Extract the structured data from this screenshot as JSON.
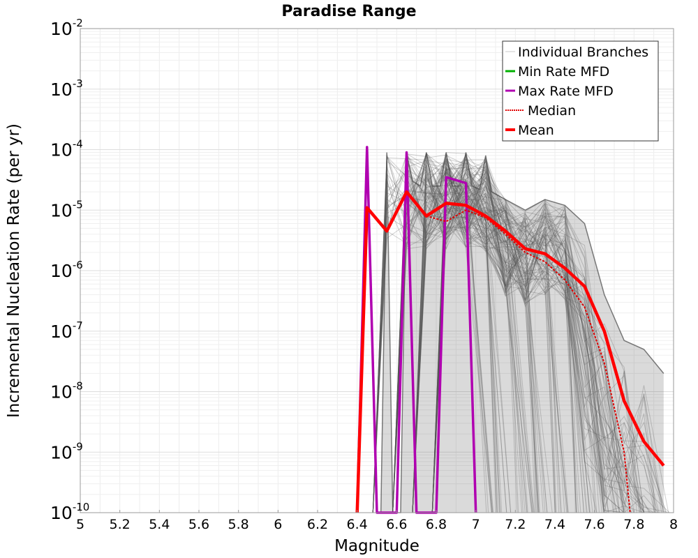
{
  "chart_data": {
    "type": "line",
    "title": "Paradise Range",
    "xlabel": "Magnitude",
    "ylabel": "Incremental Nucleation Rate (per yr)",
    "xlim": [
      5,
      8
    ],
    "ylim": [
      1e-10,
      0.01
    ],
    "yscale": "log",
    "grid": true,
    "legend_position": "top-right",
    "x_ticks": [
      "5",
      "5.2",
      "5.4",
      "5.6",
      "5.8",
      "6",
      "6.2",
      "6.4",
      "6.6",
      "6.8",
      "7",
      "7.2",
      "7.4",
      "7.6",
      "7.8",
      "8"
    ],
    "y_ticks": [
      {
        "base": "10",
        "exp": "-10",
        "value": 1e-10
      },
      {
        "base": "10",
        "exp": "-9",
        "value": 1e-09
      },
      {
        "base": "10",
        "exp": "-8",
        "value": 1e-08
      },
      {
        "base": "10",
        "exp": "-7",
        "value": 1e-07
      },
      {
        "base": "10",
        "exp": "-6",
        "value": 1e-06
      },
      {
        "base": "10",
        "exp": "-5",
        "value": 1e-05
      },
      {
        "base": "10",
        "exp": "-4",
        "value": 0.0001
      },
      {
        "base": "10",
        "exp": "-3",
        "value": 0.001
      },
      {
        "base": "10",
        "exp": "-2",
        "value": 0.01
      }
    ],
    "legend": [
      {
        "label": "Individual Branches",
        "color": "#c8c8c8",
        "style": "solid-thin"
      },
      {
        "label": "Min Rate MFD",
        "color": "#00b000",
        "style": "solid"
      },
      {
        "label": "Max Rate MFD",
        "color": "#b000b0",
        "style": "solid"
      },
      {
        "label": "Median",
        "color": "#e00000",
        "style": "dotted"
      },
      {
        "label": "Mean",
        "color": "#ff0000",
        "style": "solid-thick"
      }
    ],
    "series": [
      {
        "name": "Mean",
        "color": "#ff0000",
        "x": [
          6.4,
          6.45,
          6.55,
          6.65,
          6.75,
          6.85,
          6.95,
          7.05,
          7.15,
          7.25,
          7.35,
          7.45,
          7.55,
          7.65,
          7.75,
          7.85,
          7.95
        ],
        "y": [
          1e-10,
          1.1e-05,
          4.5e-06,
          2e-05,
          8e-06,
          1.3e-05,
          1.2e-05,
          8e-06,
          4.5e-06,
          2.3e-06,
          1.9e-06,
          1.1e-06,
          5.5e-07,
          1e-07,
          7e-09,
          1.5e-09,
          6e-10
        ]
      },
      {
        "name": "Median",
        "color": "#e00000",
        "x": [
          6.75,
          6.85,
          6.95,
          7.05,
          7.15,
          7.25,
          7.35,
          7.45,
          7.55,
          7.65,
          7.75,
          7.78
        ],
        "y": [
          8e-06,
          6.5e-06,
          1e-05,
          7.5e-06,
          4e-06,
          2e-06,
          1.4e-06,
          7e-07,
          2.5e-07,
          3e-08,
          1e-09,
          1e-10
        ]
      },
      {
        "name": "Max Rate MFD",
        "color": "#b000b0",
        "x": [
          6.4,
          6.45,
          6.5,
          6.6,
          6.65,
          6.7,
          6.8,
          6.85,
          6.95,
          7.0
        ],
        "y": [
          1e-10,
          0.00011,
          1e-10,
          1e-10,
          9e-05,
          1e-10,
          1e-10,
          3.5e-05,
          2.8e-05,
          1e-10
        ]
      },
      {
        "name": "Individual Branches",
        "color": "#555555",
        "envelope_upper": {
          "x": [
            6.52,
            6.55,
            6.58,
            6.62,
            6.65,
            6.68,
            6.72,
            6.75,
            6.78,
            6.82,
            6.85,
            6.88,
            6.92,
            6.95,
            6.98,
            7.02,
            7.05,
            7.08,
            7.15,
            7.25,
            7.35,
            7.45,
            7.55,
            7.65,
            7.75,
            7.85,
            7.95
          ],
          "y": [
            1e-10,
            9e-05,
            1e-10,
            1e-10,
            9e-05,
            3e-05,
            2.5e-05,
            9e-05,
            2.5e-05,
            2.5e-05,
            9e-05,
            2.5e-05,
            2.5e-05,
            9e-05,
            2.5e-05,
            2.2e-05,
            8e-05,
            2e-05,
            1.5e-05,
            1e-05,
            1.5e-05,
            1.2e-05,
            6e-06,
            4e-07,
            7e-08,
            5e-08,
            2e-08
          ]
        },
        "min_rate": 1e-10
      }
    ]
  }
}
